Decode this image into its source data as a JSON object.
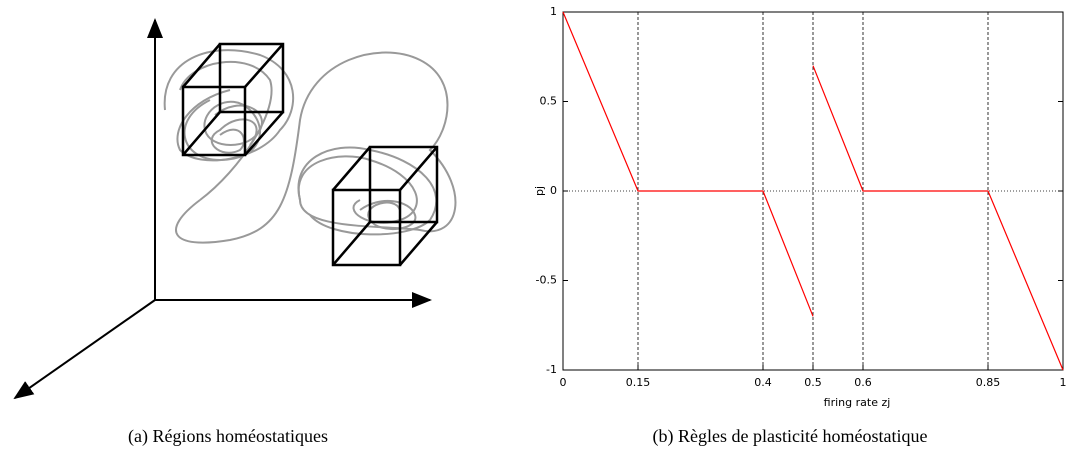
{
  "chart_data": {
    "type": "line",
    "xlabel": "firing rate zj",
    "ylabel": "pj",
    "x": [
      0,
      0.15,
      0.4,
      0.5,
      0.5,
      0.5,
      0.6,
      0.85,
      1
    ],
    "series": [
      {
        "name": "pj",
        "color": "#ff0000",
        "values": [
          1,
          0,
          0,
          -0.7,
          null,
          0.7,
          0,
          0,
          -1
        ]
      }
    ],
    "xlim": [
      0,
      1
    ],
    "ylim": [
      -1,
      1
    ],
    "xticks": [
      0,
      0.15,
      0.4,
      0.5,
      0.6,
      0.85,
      1
    ],
    "yticks": [
      -1,
      -0.5,
      0,
      0.5,
      1
    ],
    "grid": "x",
    "zero_line": true
  },
  "subfigures": [
    {
      "caption": "(a) Régions homéostatiques"
    },
    {
      "caption": "(b) Règles de plasticité homéostatique"
    }
  ]
}
